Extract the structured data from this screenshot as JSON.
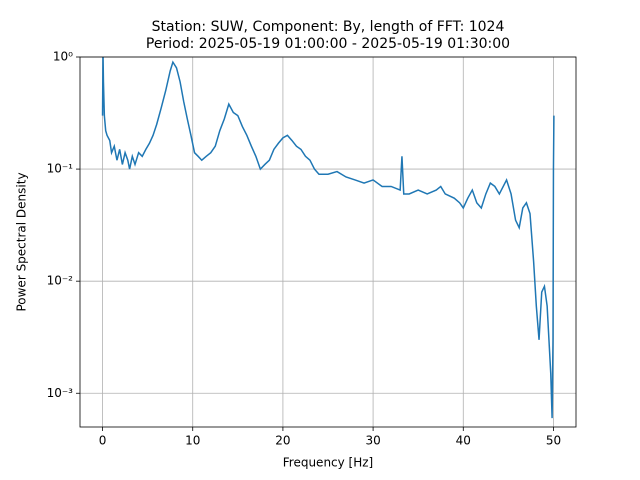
{
  "chart_data": {
    "type": "line",
    "title": [
      "Station: SUW, Component: By, length of FFT: 1024",
      "Period: 2025-05-19 01:00:00 - 2025-05-19 01:30:00"
    ],
    "xlabel": "Frequency [Hz]",
    "ylabel": "Power Spectral Density",
    "xlim": [
      -2.5,
      52.5
    ],
    "xticks": [
      0,
      10,
      20,
      30,
      40,
      50
    ],
    "ylim": [
      0.0005,
      1
    ],
    "log_y": true,
    "grid": true,
    "yticks": [
      {
        "value": 0.001,
        "label": "10⁻³"
      },
      {
        "value": 0.01,
        "label": "10⁻²"
      },
      {
        "value": 0.1,
        "label": "10⁻¹"
      },
      {
        "value": 1,
        "label": "10⁰"
      }
    ],
    "series": [
      {
        "name": "PSD",
        "color": "#1f77b4",
        "x": [
          0,
          0.05,
          0.1,
          0.2,
          0.35,
          0.5,
          0.8,
          1.0,
          1.3,
          1.6,
          1.9,
          2.2,
          2.5,
          2.8,
          3.0,
          3.3,
          3.6,
          4.0,
          4.4,
          4.8,
          5.2,
          5.6,
          6.0,
          6.5,
          7.0,
          7.5,
          7.8,
          8.2,
          8.6,
          9.0,
          9.4,
          9.8,
          10.2,
          10.6,
          11.0,
          11.5,
          12.0,
          12.5,
          13.0,
          13.5,
          14.0,
          14.5,
          15.0,
          15.5,
          16.0,
          16.5,
          17.0,
          17.5,
          18.0,
          18.5,
          19.0,
          19.5,
          20.0,
          20.5,
          21.0,
          21.5,
          22.0,
          22.5,
          23.0,
          23.5,
          24.0,
          25.0,
          26.0,
          27.0,
          28.0,
          29.0,
          30.0,
          31.0,
          32.0,
          33.0,
          33.2,
          33.4,
          34.0,
          35.0,
          36.0,
          37.0,
          37.5,
          38.0,
          39.0,
          39.6,
          40.0,
          40.5,
          41.0,
          41.5,
          42.0,
          42.5,
          43.0,
          43.5,
          44.0,
          44.8,
          45.3,
          45.8,
          46.2,
          46.6,
          47.0,
          47.4,
          47.8,
          48.1,
          48.4,
          48.7,
          49.0,
          49.3,
          49.5,
          49.7,
          49.85,
          49.95,
          50.0,
          50.05
        ],
        "values": [
          0.3,
          1.1,
          0.6,
          0.3,
          0.22,
          0.2,
          0.18,
          0.14,
          0.16,
          0.12,
          0.15,
          0.11,
          0.14,
          0.12,
          0.1,
          0.13,
          0.11,
          0.14,
          0.13,
          0.15,
          0.17,
          0.2,
          0.25,
          0.35,
          0.5,
          0.75,
          0.9,
          0.8,
          0.6,
          0.4,
          0.28,
          0.2,
          0.14,
          0.13,
          0.12,
          0.13,
          0.14,
          0.16,
          0.22,
          0.28,
          0.38,
          0.32,
          0.3,
          0.24,
          0.2,
          0.16,
          0.13,
          0.1,
          0.11,
          0.12,
          0.15,
          0.17,
          0.19,
          0.2,
          0.18,
          0.16,
          0.15,
          0.13,
          0.12,
          0.1,
          0.09,
          0.09,
          0.095,
          0.085,
          0.08,
          0.075,
          0.08,
          0.07,
          0.07,
          0.065,
          0.13,
          0.06,
          0.06,
          0.065,
          0.06,
          0.065,
          0.07,
          0.06,
          0.055,
          0.05,
          0.045,
          0.055,
          0.065,
          0.05,
          0.045,
          0.06,
          0.075,
          0.07,
          0.06,
          0.08,
          0.06,
          0.035,
          0.03,
          0.045,
          0.05,
          0.04,
          0.015,
          0.006,
          0.003,
          0.008,
          0.009,
          0.006,
          0.003,
          0.0015,
          0.0006,
          0.003,
          0.1,
          0.3
        ]
      }
    ]
  }
}
